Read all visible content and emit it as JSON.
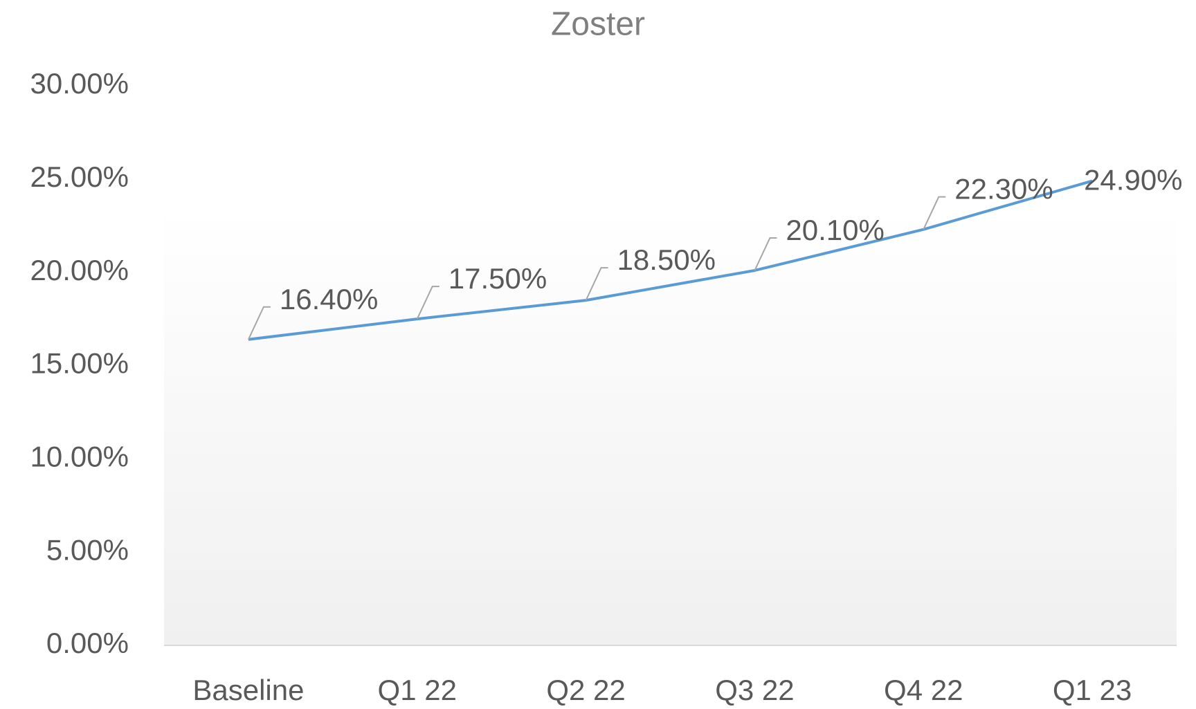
{
  "chart_data": {
    "type": "line",
    "title": "Zoster",
    "categories": [
      "Baseline",
      "Q1 22",
      "Q2 22",
      "Q3 22",
      "Q4 22",
      "Q1 23"
    ],
    "series": [
      {
        "name": "Zoster",
        "color": "#5b9bd5",
        "values": [
          16.4,
          17.5,
          18.5,
          20.1,
          22.3,
          24.9
        ],
        "value_labels": [
          "16.40%",
          "17.50%",
          "18.50%",
          "20.10%",
          "22.30%",
          "24.90%"
        ]
      }
    ],
    "ylim": [
      0,
      30
    ],
    "yticks": [
      {
        "value": 0,
        "label": "0.00%"
      },
      {
        "value": 5,
        "label": "5.00%"
      },
      {
        "value": 10,
        "label": "10.00%"
      },
      {
        "value": 15,
        "label": "15.00%"
      },
      {
        "value": 20,
        "label": "20.00%"
      },
      {
        "value": 25,
        "label": "25.00%"
      },
      {
        "value": 30,
        "label": "30.00%"
      }
    ],
    "grid": false
  }
}
